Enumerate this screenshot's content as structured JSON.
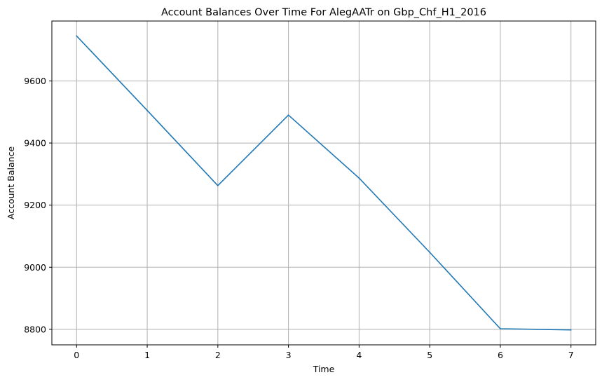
{
  "chart_data": {
    "type": "line",
    "title": "Account Balances Over Time For AlegAATr on Gbp_Chf_H1_2016",
    "xlabel": "Time",
    "ylabel": "Account Balance",
    "x": [
      0,
      1,
      2,
      3,
      4,
      5,
      6,
      7
    ],
    "series": [
      {
        "values": [
          9745,
          9505,
          9263,
          9490,
          9287,
          9048,
          8802,
          8798
        ],
        "color": "#1f77b4"
      }
    ],
    "xticks": [
      "0",
      "1",
      "2",
      "3",
      "4",
      "5",
      "6",
      "7"
    ],
    "yticks": [
      "8800",
      "9000",
      "9200",
      "9400",
      "9600"
    ],
    "xlim": [
      -0.35,
      7.35
    ],
    "ylim": [
      8750,
      9793
    ],
    "grid": true,
    "grid_color": "#b0b0b0",
    "legend": "none"
  }
}
